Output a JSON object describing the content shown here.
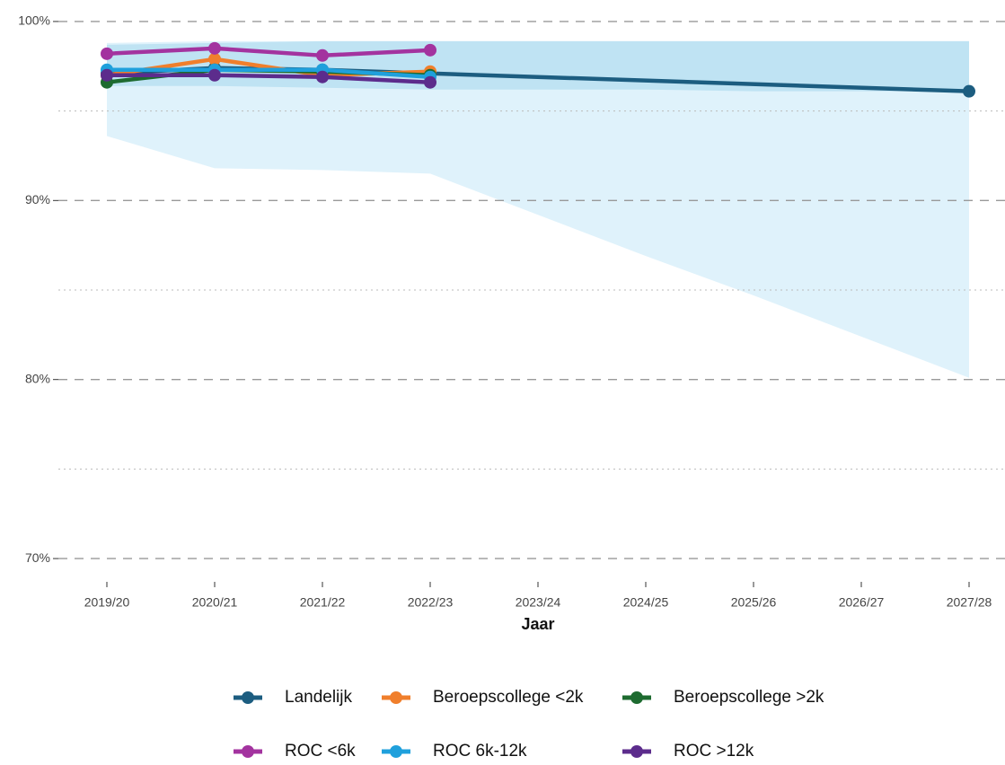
{
  "chart_data": {
    "type": "line",
    "x_label": "Jaar",
    "categories": [
      "2019/20",
      "2020/21",
      "2021/22",
      "2022/23",
      "2023/24",
      "2024/25",
      "2025/26",
      "2026/27",
      "2027/28"
    ],
    "ylim": [
      68.7,
      101.2
    ],
    "yticks": [
      {
        "value": 70,
        "label": "70%"
      },
      {
        "value": 80,
        "label": "80%"
      },
      {
        "value": 90,
        "label": "90%"
      },
      {
        "value": 100,
        "label": "100%"
      }
    ],
    "minor_yticks": [
      75,
      85,
      95
    ],
    "grid": true,
    "bands": [
      {
        "color": "#dff2fb",
        "upper": [
          98.8,
          98.9,
          98.9,
          98.9,
          98.9,
          98.9,
          98.9,
          98.9,
          98.9
        ],
        "lower": [
          93.6,
          91.8,
          91.7,
          91.5,
          89.2,
          86.9,
          84.7,
          82.4,
          80.1
        ]
      },
      {
        "color": "#bfe3f3",
        "upper": [
          98.7,
          98.8,
          98.9,
          98.9,
          98.9,
          98.9,
          98.9,
          98.9,
          98.9
        ],
        "lower": [
          96.4,
          96.4,
          96.3,
          96.2,
          96.2,
          96.2,
          96.1,
          96.1,
          96.1
        ]
      }
    ],
    "connect_gaps": true,
    "series": [
      {
        "name": "Landelijk",
        "color": "#1c5d80",
        "values": [
          97.1,
          97.4,
          97.3,
          97.1,
          null,
          null,
          null,
          null,
          96.1
        ]
      },
      {
        "name": "Beroepscollege <2k",
        "color": "#f07f2c",
        "values": [
          97.0,
          97.9,
          97.0,
          97.2,
          null,
          null,
          null,
          null,
          null
        ]
      },
      {
        "name": "Beroepscollege >2k",
        "color": "#1e6b30",
        "values": [
          96.6,
          97.3,
          97.2,
          97.0,
          null,
          null,
          null,
          null,
          null
        ]
      },
      {
        "name": "ROC <6k",
        "color": "#a3339f",
        "values": [
          98.2,
          98.5,
          98.1,
          98.4,
          null,
          null,
          null,
          null,
          null
        ]
      },
      {
        "name": "ROC 6k-12k",
        "color": "#1fa0dc",
        "values": [
          97.3,
          97.3,
          97.3,
          96.9,
          null,
          null,
          null,
          null,
          null
        ]
      },
      {
        "name": "ROC >12k",
        "color": "#5c2c8c",
        "values": [
          97.0,
          97.0,
          96.9,
          96.6,
          null,
          null,
          null,
          null,
          null
        ]
      }
    ]
  }
}
